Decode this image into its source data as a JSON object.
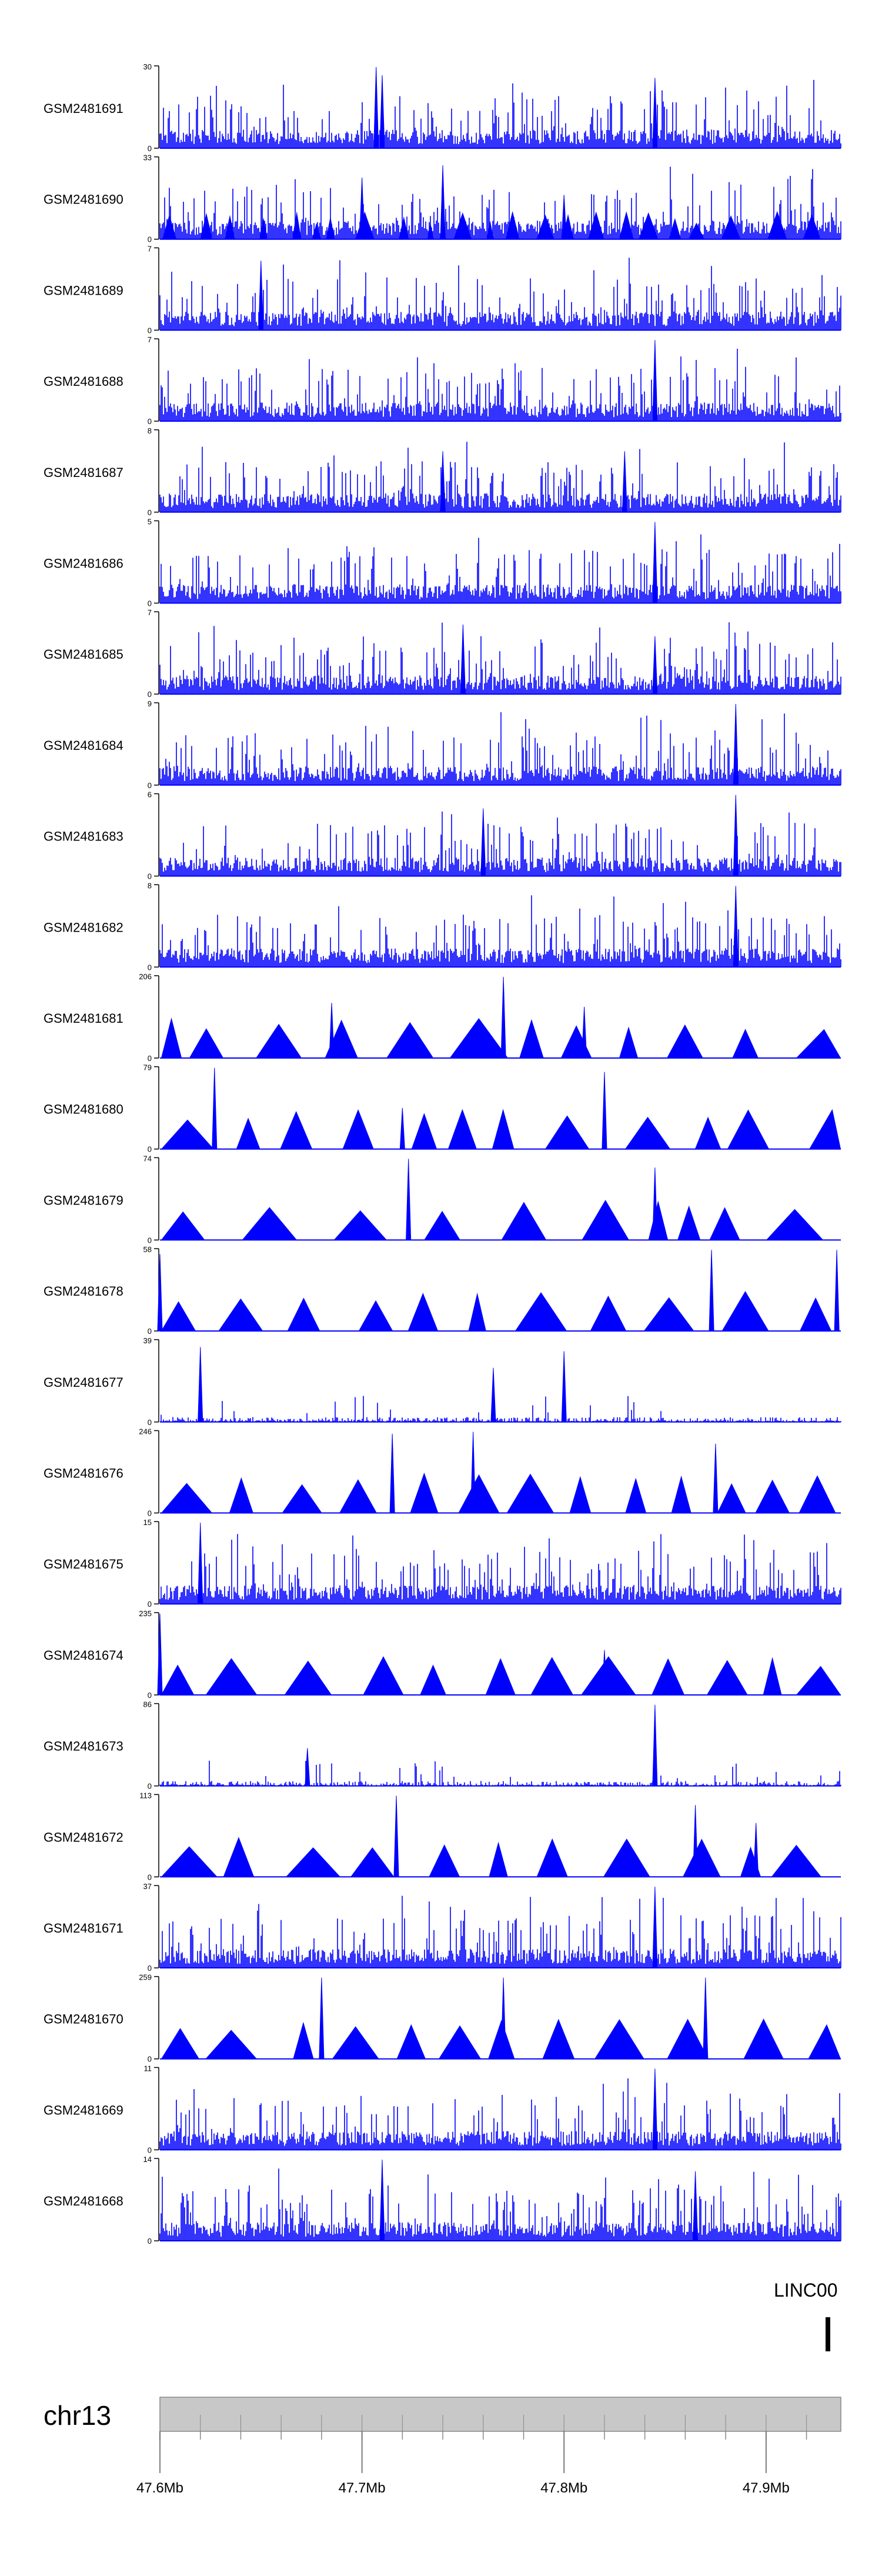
{
  "chart_data": {
    "type": "area",
    "title": "",
    "series_color": "#0000ff",
    "tracks": [
      {
        "name": "GSM2481691",
        "ymax": 30,
        "pattern": "dense",
        "seed": 91,
        "peaks": [
          {
            "x": 47.707,
            "v": 30
          },
          {
            "x": 47.71,
            "v": 27
          },
          {
            "x": 47.845,
            "v": 26
          }
        ]
      },
      {
        "name": "GSM2481690",
        "ymax": 33,
        "pattern": "dense-tri",
        "seed": 90,
        "peaks": [
          {
            "x": 47.7,
            "v": 25
          },
          {
            "x": 47.74,
            "v": 30
          },
          {
            "x": 47.8,
            "v": 18
          }
        ]
      },
      {
        "name": "GSM2481689",
        "ymax": 7,
        "pattern": "dense",
        "seed": 89,
        "peaks": [
          {
            "x": 47.65,
            "v": 6
          }
        ]
      },
      {
        "name": "GSM2481688",
        "ymax": 7,
        "pattern": "dense",
        "seed": 88,
        "peaks": [
          {
            "x": 47.845,
            "v": 7
          }
        ]
      },
      {
        "name": "GSM2481687",
        "ymax": 8,
        "pattern": "dense",
        "seed": 87,
        "peaks": [
          {
            "x": 47.74,
            "v": 6
          },
          {
            "x": 47.83,
            "v": 6
          }
        ]
      },
      {
        "name": "GSM2481686",
        "ymax": 5,
        "pattern": "dense",
        "seed": 86,
        "peaks": [
          {
            "x": 47.845,
            "v": 5
          }
        ]
      },
      {
        "name": "GSM2481685",
        "ymax": 7,
        "pattern": "dense",
        "seed": 85,
        "peaks": [
          {
            "x": 47.75,
            "v": 6
          },
          {
            "x": 47.845,
            "v": 5
          }
        ]
      },
      {
        "name": "GSM2481684",
        "ymax": 9,
        "pattern": "dense",
        "seed": 84,
        "peaks": [
          {
            "x": 47.885,
            "v": 9
          }
        ]
      },
      {
        "name": "GSM2481683",
        "ymax": 6,
        "pattern": "dense",
        "seed": 83,
        "peaks": [
          {
            "x": 47.885,
            "v": 6
          },
          {
            "x": 47.76,
            "v": 5
          }
        ]
      },
      {
        "name": "GSM2481682",
        "ymax": 8,
        "pattern": "dense",
        "seed": 82,
        "peaks": [
          {
            "x": 47.885,
            "v": 8
          }
        ]
      },
      {
        "name": "GSM2481681",
        "ymax": 206,
        "pattern": "tri",
        "seed": 81,
        "peaks": [
          {
            "x": 47.77,
            "v": 206
          },
          {
            "x": 47.685,
            "v": 140
          },
          {
            "x": 47.81,
            "v": 130
          }
        ]
      },
      {
        "name": "GSM2481680",
        "ymax": 79,
        "pattern": "tri",
        "seed": 80,
        "peaks": [
          {
            "x": 47.627,
            "v": 79
          },
          {
            "x": 47.82,
            "v": 75
          },
          {
            "x": 47.72,
            "v": 40
          }
        ]
      },
      {
        "name": "GSM2481679",
        "ymax": 74,
        "pattern": "tri",
        "seed": 79,
        "peaks": [
          {
            "x": 47.723,
            "v": 74
          },
          {
            "x": 47.845,
            "v": 66
          }
        ]
      },
      {
        "name": "GSM2481678",
        "ymax": 58,
        "pattern": "tri",
        "seed": 78,
        "peaks": [
          {
            "x": 47.873,
            "v": 58
          },
          {
            "x": 47.935,
            "v": 58
          },
          {
            "x": 47.6,
            "v": 55
          }
        ]
      },
      {
        "name": "GSM2481677",
        "ymax": 39,
        "pattern": "sparse",
        "seed": 77,
        "peaks": [
          {
            "x": 47.62,
            "v": 36
          },
          {
            "x": 47.8,
            "v": 34
          },
          {
            "x": 47.765,
            "v": 26
          }
        ]
      },
      {
        "name": "GSM2481676",
        "ymax": 246,
        "pattern": "tri",
        "seed": 76,
        "peaks": [
          {
            "x": 47.715,
            "v": 240
          },
          {
            "x": 47.755,
            "v": 246
          },
          {
            "x": 47.875,
            "v": 210
          }
        ]
      },
      {
        "name": "GSM2481675",
        "ymax": 15,
        "pattern": "dense",
        "seed": 75,
        "peaks": [
          {
            "x": 47.62,
            "v": 15
          }
        ]
      },
      {
        "name": "GSM2481674",
        "ymax": 235,
        "pattern": "tri",
        "seed": 74,
        "peaks": [
          {
            "x": 47.6,
            "v": 235
          },
          {
            "x": 47.82,
            "v": 130
          }
        ]
      },
      {
        "name": "GSM2481673",
        "ymax": 86,
        "pattern": "sparse",
        "seed": 73,
        "peaks": [
          {
            "x": 47.845,
            "v": 86
          },
          {
            "x": 47.673,
            "v": 40
          }
        ]
      },
      {
        "name": "GSM2481672",
        "ymax": 113,
        "pattern": "tri",
        "seed": 72,
        "peaks": [
          {
            "x": 47.717,
            "v": 113
          },
          {
            "x": 47.865,
            "v": 100
          },
          {
            "x": 47.895,
            "v": 75
          }
        ]
      },
      {
        "name": "GSM2481671",
        "ymax": 37,
        "pattern": "dense",
        "seed": 71,
        "peaks": [
          {
            "x": 47.845,
            "v": 37
          }
        ]
      },
      {
        "name": "GSM2481670",
        "ymax": 259,
        "pattern": "tri",
        "seed": 70,
        "peaks": [
          {
            "x": 47.68,
            "v": 259
          },
          {
            "x": 47.77,
            "v": 259
          },
          {
            "x": 47.87,
            "v": 259
          }
        ]
      },
      {
        "name": "GSM2481669",
        "ymax": 11,
        "pattern": "dense",
        "seed": 69,
        "peaks": [
          {
            "x": 47.845,
            "v": 11
          }
        ]
      },
      {
        "name": "GSM2481668",
        "ymax": 14,
        "pattern": "dense",
        "seed": 68,
        "peaks": [
          {
            "x": 47.71,
            "v": 14
          },
          {
            "x": 47.865,
            "v": 12
          }
        ]
      }
    ],
    "gene_label": "LINC00",
    "chromosome": "chr13",
    "xlim": [
      47.6,
      47.937
    ],
    "x_ticks": [
      {
        "value": 47.6,
        "label": "47.6Mb"
      },
      {
        "value": 47.7,
        "label": "47.7Mb"
      },
      {
        "value": 47.8,
        "label": "47.8Mb"
      },
      {
        "value": 47.9,
        "label": "47.9Mb"
      }
    ],
    "minor_tick_step": 0.02
  }
}
